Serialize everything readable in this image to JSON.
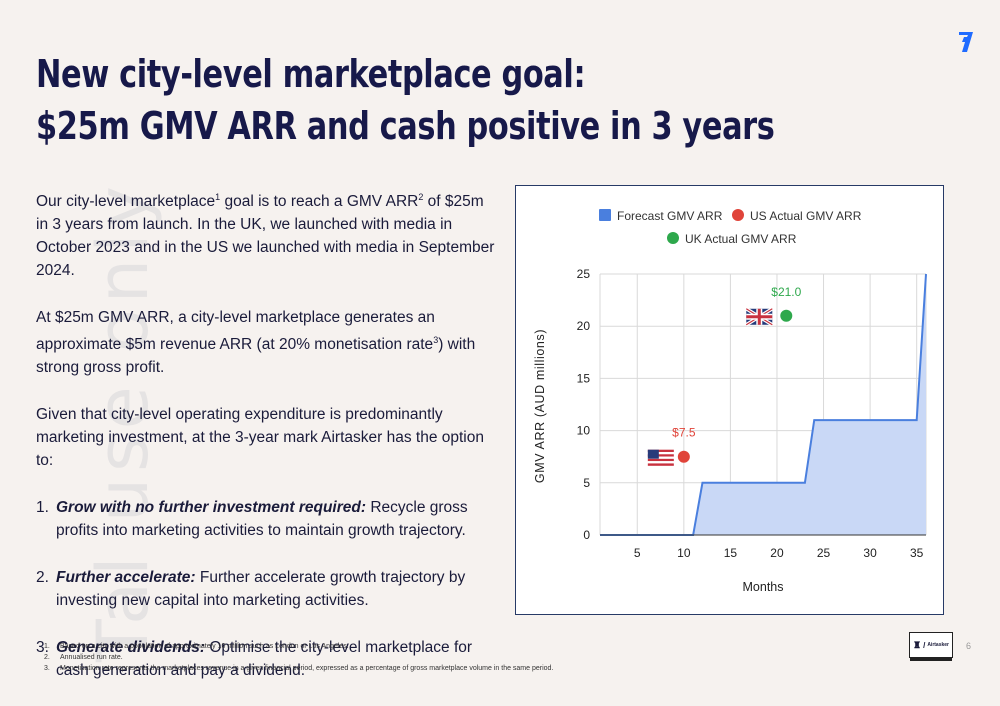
{
  "watermark": "Tal use only",
  "title": {
    "line1": "New city-level marketplace goal:",
    "line2": "$25m GMV ARR and cash positive in 3 years"
  },
  "body": {
    "p1": {
      "a": "Our city-level marketplace",
      "s1": "1",
      "b": " goal is to reach a GMV ARR",
      "s2": "2",
      "c": " of $25m in 3 years from launch. In the UK, we launched with media in October 2023 and in the US we launched with media in September 2024."
    },
    "p2": {
      "a": "At $25m GMV ARR, a city-level marketplace generates an approximate $5m revenue ARR (at 20% monetisation rate",
      "s3": "3",
      "b": ") with strong gross profit."
    },
    "p3": "Given that city-level operating expenditure is predominantly marketing investment, at the 3-year mark Airtasker has the option to:",
    "options": [
      {
        "num": "1.",
        "head": "Grow with no further investment required:",
        "text": " Recycle gross profits into marketing activities to maintain growth trajectory."
      },
      {
        "num": "2.",
        "head": "Further accelerate:",
        "text": " Further accelerate growth trajectory by investing new capital into marketing activities."
      },
      {
        "num": "3.",
        "head": "Generate dividends:",
        "text": " Optimise the city-level marketplace for cash generation and pay a dividend."
      }
    ]
  },
  "footnotes": [
    {
      "n": "1.",
      "text": "Based on a city with a population of approximately 10 million such as London or Los Angeles."
    },
    {
      "n": "2.",
      "text": "Annualised run rate."
    },
    {
      "n": "3.",
      "text": "Monetisation rate represents the marketplaces revenue in a given financial period, expressed as a percentage of gross marketplace volume  in the same period."
    }
  ],
  "page_number": "6",
  "brand": {
    "name": "Airtasker"
  },
  "colors": {
    "forecast": "#4a7fde",
    "forecast_fill": "#c9d8f6",
    "us": "#e0443a",
    "uk": "#2ea84c",
    "navy": "#17194a"
  },
  "chart_data": {
    "type": "area",
    "xlabel": "Months",
    "ylabel": "GMV ARR (AUD millions)",
    "xlim": [
      1,
      36
    ],
    "ylim": [
      0,
      25
    ],
    "xticks": [
      5,
      10,
      15,
      20,
      25,
      30,
      35
    ],
    "yticks": [
      0,
      5,
      10,
      15,
      20,
      25
    ],
    "grid": true,
    "legend_position": "top",
    "series": [
      {
        "name": "Forecast GMV ARR",
        "kind": "area",
        "color": "#4a7fde",
        "x": [
          1,
          11,
          12,
          23,
          24,
          35,
          36
        ],
        "y": [
          0,
          0,
          5,
          5,
          11,
          11,
          25
        ]
      },
      {
        "name": "US Actual GMV ARR",
        "kind": "point",
        "color": "#e0443a",
        "x": [
          10
        ],
        "y": [
          7.5
        ],
        "labels": [
          "$7.5"
        ],
        "flag": "us-flag"
      },
      {
        "name": "UK Actual GMV ARR",
        "kind": "point",
        "color": "#2ea84c",
        "x": [
          21
        ],
        "y": [
          21.0
        ],
        "labels": [
          "$21.0"
        ],
        "flag": "uk-flag"
      }
    ]
  }
}
